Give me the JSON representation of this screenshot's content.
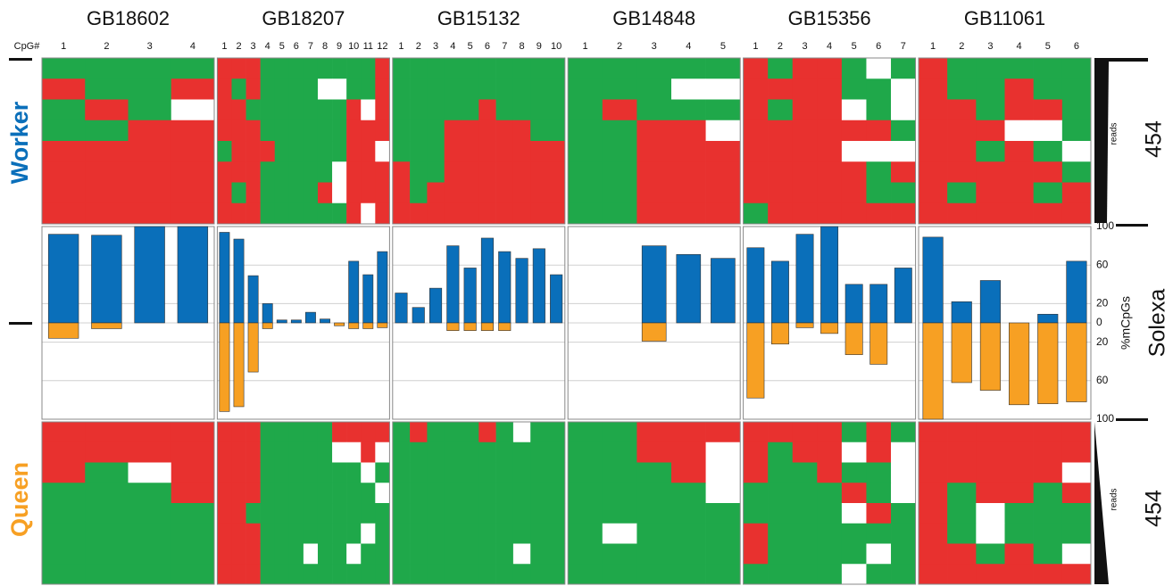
{
  "chart_data": {
    "type": "methylation",
    "cpg_label": "CpG#",
    "worker_label": "Worker",
    "queen_label": "Queen",
    "middle_label": "Solexa",
    "top_label": "454",
    "bottom_label": "454",
    "reads_top": "reads",
    "reads_bottom": "reads",
    "ylabel": "%mCpGs",
    "ylim": [
      -100,
      100
    ],
    "yticks": [
      100,
      60,
      20,
      0,
      {
        "value": -20,
        "label": "20"
      },
      {
        "value": -60,
        "label": "60"
      },
      {
        "value": -100,
        "label": "100"
      }
    ],
    "colors": {
      "R": "#e8312f",
      "G": "#1fa84a",
      "W": "#ffffff",
      "worker": "#0a6fba",
      "queen": "#f7a023"
    },
    "genes": [
      {
        "name": "GB18602",
        "cpgs": [
          "1",
          "2",
          "3",
          "4"
        ],
        "worker": [
          92,
          91,
          100,
          100
        ],
        "queen": [
          16,
          6,
          0,
          0
        ],
        "worker_reads": [
          "GGGG",
          "RGGR",
          "GRGW",
          "GGRR",
          "RRRR",
          "RRRR",
          "RRRR",
          "RRRR"
        ],
        "queen_reads": [
          "RRRR",
          "RRRR",
          "RGWR",
          "GGGR",
          "GGGG",
          "GGGG",
          "GGGG",
          "GGGG"
        ]
      },
      {
        "name": "GB18207",
        "cpgs": [
          "1",
          "2",
          "3",
          "4",
          "5",
          "6",
          "7",
          "8",
          "9",
          "10",
          "11",
          "12"
        ],
        "worker": [
          94,
          87,
          49,
          20,
          3,
          3,
          11,
          4,
          0,
          64,
          50,
          74
        ],
        "queen": [
          92,
          87,
          51,
          6,
          0,
          0,
          0,
          0,
          3,
          6,
          6,
          5
        ],
        "worker_reads": [
          "RRRGGGGGGGGR",
          "RGRGGGGWWGGR",
          "RRGGGGGGGRWR",
          "RRRGGGGGGRRR",
          "GRRRGGGGGRRW",
          "RRRGGGGGWRRR",
          "RGRGGGGRWRRR",
          "RRRGGGGGGRWR"
        ],
        "queen_reads": [
          "RRRGGGGGRRRR",
          "RRRGGGGGWWRW",
          "RRRGGGGGGGWG",
          "RRRGGGGGGGGW",
          "RRGGGGGGGGGG",
          "RRRGGGGGGGWG",
          "RRRGGGWGGWGG",
          "RRRGGGGGGGGG"
        ]
      },
      {
        "name": "GB15132",
        "cpgs": [
          "1",
          "2",
          "3",
          "4",
          "5",
          "6",
          "7",
          "8",
          "9",
          "10"
        ],
        "worker": [
          31,
          16,
          36,
          80,
          57,
          88,
          74,
          67,
          77,
          50
        ],
        "queen": [
          0,
          0,
          0,
          8,
          8,
          8,
          8,
          0,
          0,
          0
        ],
        "worker_reads": [
          "GGGGGGGGGG",
          "GGGGGGGGGG",
          "GGGGGRGGGG",
          "GGGRRRRRGG",
          "GGGRRRRRRR",
          "RGGRRRRRRR",
          "RGRRRRRRRR",
          "RRRRRRRRRR"
        ],
        "queen_reads": [
          "GRGGGRGWGG",
          "GGGGGGGGGG",
          "GGGGGGGGGG",
          "GGGGGGGGGG",
          "GGGGGGGGGG",
          "GGGGGGGGGG",
          "GGGGGGGWGG",
          "GGGGGGGGGG"
        ]
      },
      {
        "name": "GB14848",
        "cpgs": [
          "1",
          "2",
          "3",
          "4",
          "5"
        ],
        "worker": [
          0,
          0,
          80,
          71,
          67
        ],
        "queen": [
          0,
          0,
          19,
          0,
          0
        ],
        "worker_reads": [
          "GGGGG",
          "GGGWW",
          "GRGGG",
          "GGRRW",
          "GGRRR",
          "GGRRR",
          "GGRRR",
          "GGRRR"
        ],
        "queen_reads": [
          "GGRRR",
          "GGRRW",
          "GGGRW",
          "GGGGW",
          "GGGGG",
          "GWGGG",
          "GGGGG",
          "GGGGG"
        ]
      },
      {
        "name": "GB15356",
        "cpgs": [
          "1",
          "2",
          "3",
          "4",
          "5",
          "6",
          "7"
        ],
        "worker": [
          78,
          64,
          92,
          100,
          40,
          40,
          57
        ],
        "queen": [
          78,
          22,
          5,
          11,
          33,
          43,
          0
        ],
        "worker_reads": [
          "RGRRGWG",
          "RRRRGGW",
          "RGRRWGW",
          "RRRRRRG",
          "RRRRWWW",
          "RRRRRGR",
          "RRRRRGG",
          "GRRRRRR"
        ],
        "queen_reads": [
          "RRRRGRG",
          "RGRRWRW",
          "RGGRGGW",
          "GGGGRGW",
          "GGGGWRG",
          "RGGGGGG",
          "RGGGGWG",
          "GGGGWGG"
        ]
      },
      {
        "name": "GB11061",
        "cpgs": [
          "1",
          "2",
          "3",
          "4",
          "5",
          "6"
        ],
        "worker": [
          89,
          22,
          44,
          0,
          9,
          64
        ],
        "queen": [
          100,
          62,
          70,
          85,
          84,
          82
        ],
        "worker_reads": [
          "RGGGGG",
          "RGGRGG",
          "RRGRRG",
          "RRRWWG",
          "RRGRGW",
          "RRRRRG",
          "RGRRGR",
          "RRRRRR"
        ],
        "queen_reads": [
          "RRRRRR",
          "RRRRRR",
          "RRRRRW",
          "RGRRGR",
          "RGWGGG",
          "RGWGGG",
          "RRGRGW",
          "RRRRRR"
        ]
      }
    ]
  }
}
